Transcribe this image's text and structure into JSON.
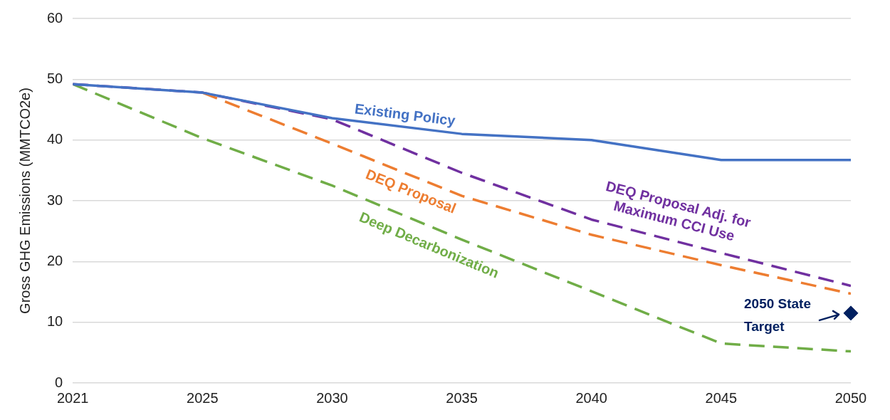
{
  "chart_data": {
    "type": "line",
    "ylabel": "Gross GHG Emissions (MMTCO2e)",
    "categories": [
      "2021",
      "2025",
      "2030",
      "2035",
      "2040",
      "2045",
      "2050"
    ],
    "series": [
      {
        "name": "Existing Policy",
        "color": "#4472c4",
        "line_style": "solid",
        "values": [
          49.2,
          47.8,
          43.6,
          41.0,
          40.0,
          36.7,
          36.7
        ]
      },
      {
        "name": "DEQ Proposal",
        "color": "#ed7d31",
        "line_style": "dashed",
        "values": [
          null,
          47.8,
          39.4,
          30.8,
          24.4,
          19.4,
          14.7
        ]
      },
      {
        "name": "DEQ Proposal Adj. for\nMaximum CCI Use",
        "color": "#7030a0",
        "line_style": "dashed",
        "values": [
          49.2,
          47.8,
          43.4,
          34.6,
          26.9,
          21.4,
          16.0
        ]
      },
      {
        "name": "Deep Decarbonization",
        "color": "#70ad47",
        "line_style": "dashed",
        "values": [
          49.2,
          40.3,
          32.5,
          23.6,
          15.1,
          6.5,
          5.2
        ]
      },
      {
        "type": "scatter",
        "color": "#002060",
        "marker": "diamond",
        "values": [
          null,
          null,
          null,
          null,
          null,
          null,
          11.5
        ]
      }
    ],
    "annotations": [
      {
        "text": "2050 State\nTarget",
        "x": "2050",
        "y": 11.5
      }
    ],
    "ylim": [
      0,
      60
    ],
    "yticks": [
      0,
      10,
      20,
      30,
      40,
      50,
      60
    ],
    "grid": "y",
    "legend": false,
    "marker": "none"
  }
}
